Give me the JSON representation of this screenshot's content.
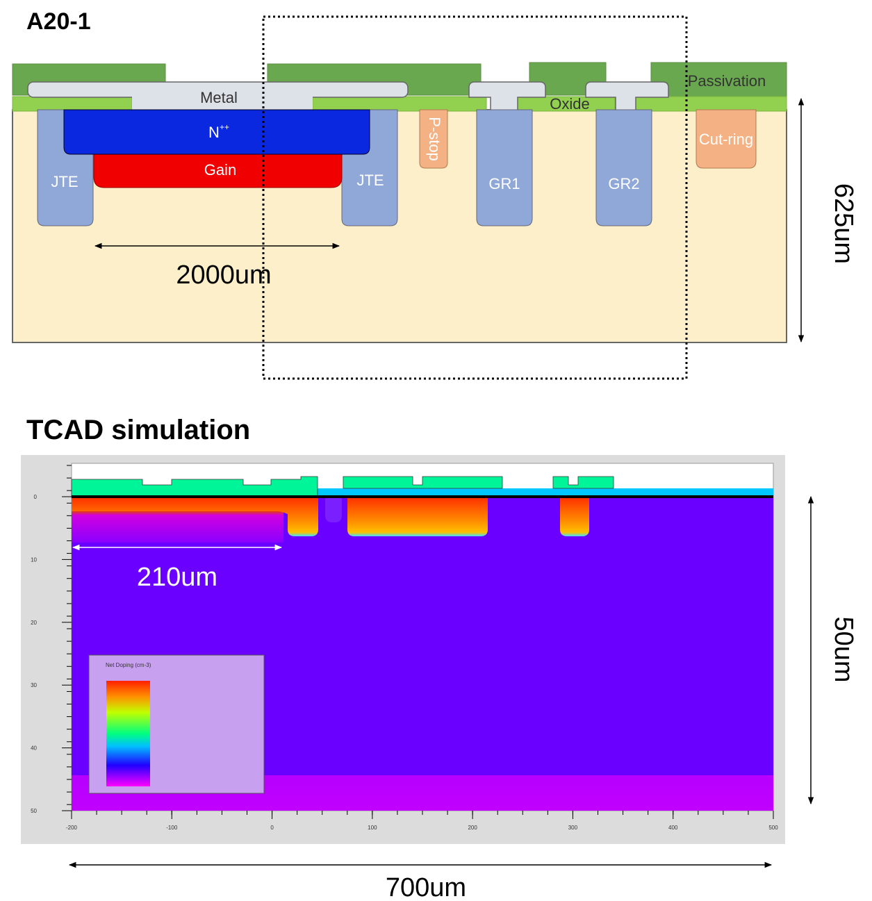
{
  "top": {
    "title": "A20-1",
    "labels": {
      "metal": "Metal",
      "npp": {
        "base": "N",
        "sup": "++"
      },
      "gain": "Gain",
      "jte_left": "JTE",
      "jte_right": "JTE",
      "pstop": "P-stop",
      "gr1": "GR1",
      "gr2": "GR2",
      "oxide": "Oxide",
      "passivation": "Passivation",
      "cutring": "Cut-ring"
    },
    "width_label": "2000um",
    "depth_label": "625um"
  },
  "bottom": {
    "title": "TCAD simulation",
    "legend_title": "Net Doping (cm-3)",
    "xticks": [
      "-200",
      "-100",
      "0",
      "100",
      "200",
      "300",
      "400",
      "500"
    ],
    "yticks": [
      "0",
      "10",
      "20",
      "30",
      "40",
      "50"
    ],
    "width_label": "210um",
    "depth_label": "50um",
    "total_label": "700um"
  }
}
